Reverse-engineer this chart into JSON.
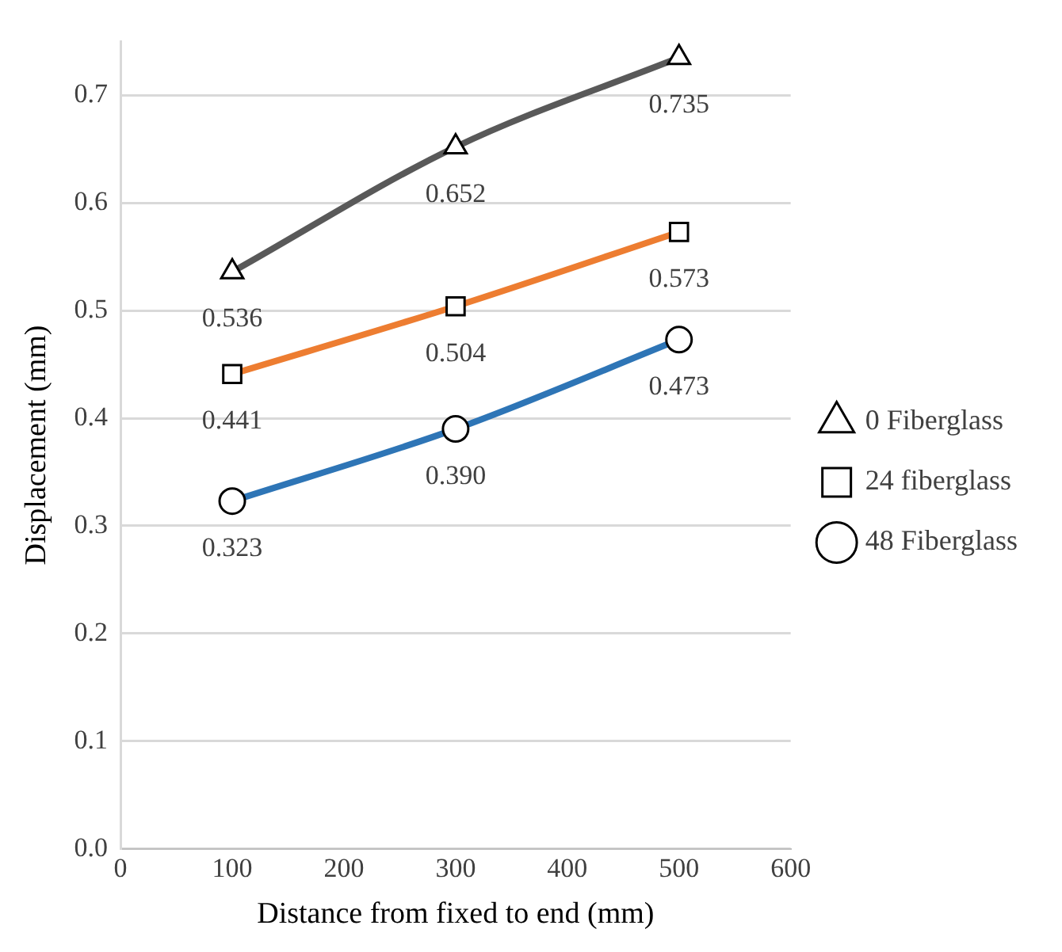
{
  "chart_data": {
    "type": "line",
    "xlabel": "Distance from fixed to end (mm)",
    "ylabel": "Displacement (mm)",
    "x": [
      100,
      300,
      500
    ],
    "xlim": [
      0,
      600
    ],
    "xticks": [
      0,
      100,
      200,
      300,
      400,
      500,
      600
    ],
    "ylim": [
      0,
      0.75
    ],
    "yticks": [
      {
        "value": 0,
        "label": "0.0"
      },
      {
        "value": 0.1,
        "label": "0.1"
      },
      {
        "value": 0.2,
        "label": "0.2"
      },
      {
        "value": 0.3,
        "label": "0.3"
      },
      {
        "value": 0.4,
        "label": "0.4"
      },
      {
        "value": 0.5,
        "label": "0.5"
      },
      {
        "value": 0.6,
        "label": "0.6"
      },
      {
        "value": 0.7,
        "label": "0.7"
      }
    ],
    "grid": "y",
    "legend": "right",
    "series": [
      {
        "name": "0 Fiberglass",
        "color": "#595959",
        "marker": "triangle",
        "values": [
          0.536,
          0.652,
          0.735
        ],
        "value_labels": [
          "0.536",
          "0.652",
          "0.735"
        ]
      },
      {
        "name": "24 fiberglass",
        "color": "#ed7d31",
        "marker": "square",
        "values": [
          0.441,
          0.504,
          0.573
        ],
        "value_labels": [
          "0.441",
          "0.504",
          "0.573"
        ]
      },
      {
        "name": "48 Fiberglass",
        "color": "#2e75b6",
        "marker": "circle",
        "values": [
          0.323,
          0.39,
          0.473
        ],
        "value_labels": [
          "0.323",
          "0.390",
          "0.473"
        ]
      }
    ]
  }
}
